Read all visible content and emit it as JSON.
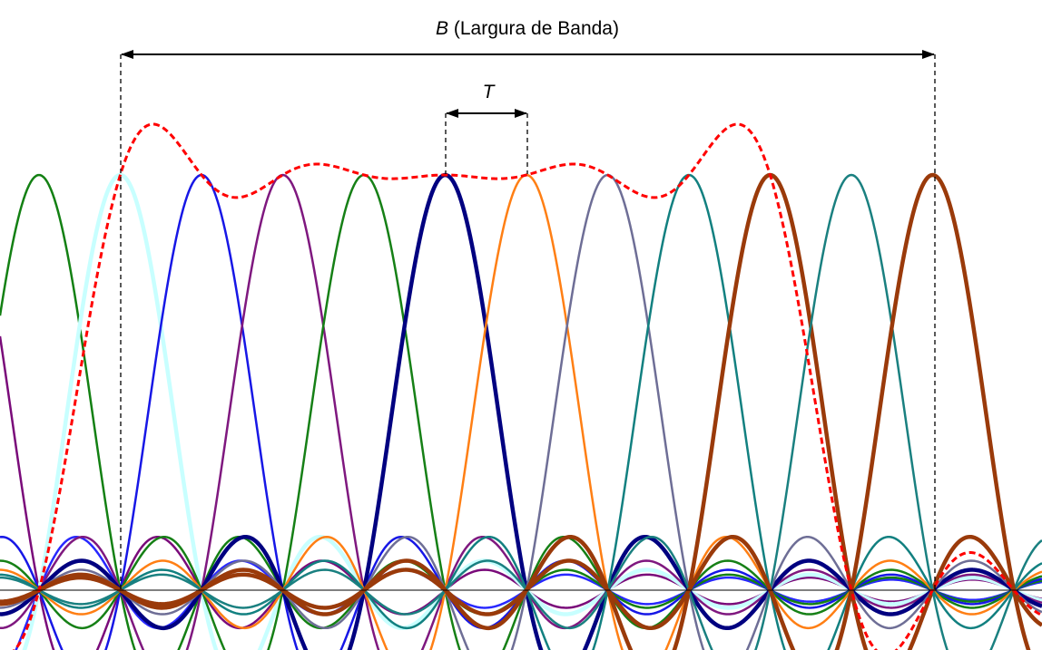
{
  "labels": {
    "bandwidth_symbol": "B",
    "bandwidth_text": " (Largura de Banda)",
    "spacing_symbol": "T"
  },
  "diagram": {
    "function": "sinc",
    "pulse_centers": [
      -2,
      -1,
      0,
      1,
      2,
      3,
      4,
      5,
      6,
      7,
      8,
      9,
      10,
      11
    ],
    "visible_peaks": [
      1,
      2,
      3,
      4,
      5,
      6,
      7,
      8,
      9
    ],
    "envelope_color": "#ff0000",
    "pulses": [
      {
        "center": -2,
        "color": "#2828ff",
        "weight": "normal"
      },
      {
        "center": -1,
        "color": "#7a0b7a",
        "weight": "normal"
      },
      {
        "center": 0,
        "color": "#138013",
        "weight": "normal"
      },
      {
        "center": 1,
        "color": "#c8ffff",
        "weight": "bold"
      },
      {
        "center": 2,
        "color": "#1717e6",
        "weight": "normal"
      },
      {
        "center": 3,
        "color": "#7f187f",
        "weight": "normal"
      },
      {
        "center": 4,
        "color": "#168016",
        "weight": "normal"
      },
      {
        "center": 5,
        "color": "#000080",
        "weight": "bold"
      },
      {
        "center": 6,
        "color": "#ff7f14",
        "weight": "normal"
      },
      {
        "center": 7,
        "color": "#6e6e96",
        "weight": "normal"
      },
      {
        "center": 8,
        "color": "#128080",
        "weight": "normal"
      },
      {
        "center": 9,
        "color": "#9a3a0a",
        "weight": "bold"
      },
      {
        "center": 10,
        "color": "#1a8080",
        "weight": "normal"
      },
      {
        "center": 11,
        "color": "#9a3a0a",
        "weight": "bold"
      }
    ]
  }
}
